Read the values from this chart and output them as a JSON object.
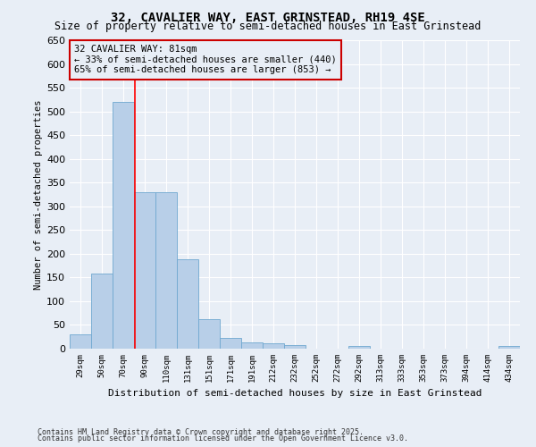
{
  "title": "32, CAVALIER WAY, EAST GRINSTEAD, RH19 4SE",
  "subtitle": "Size of property relative to semi-detached houses in East Grinstead",
  "xlabel": "Distribution of semi-detached houses by size in East Grinstead",
  "ylabel": "Number of semi-detached properties",
  "footer_line1": "Contains HM Land Registry data © Crown copyright and database right 2025.",
  "footer_line2": "Contains public sector information licensed under the Open Government Licence v3.0.",
  "bins": [
    "29sqm",
    "50sqm",
    "70sqm",
    "90sqm",
    "110sqm",
    "131sqm",
    "151sqm",
    "171sqm",
    "191sqm",
    "212sqm",
    "232sqm",
    "252sqm",
    "272sqm",
    "292sqm",
    "313sqm",
    "333sqm",
    "353sqm",
    "373sqm",
    "394sqm",
    "414sqm",
    "434sqm"
  ],
  "values": [
    30,
    158,
    520,
    330,
    330,
    188,
    62,
    22,
    14,
    11,
    8,
    0,
    0,
    5,
    0,
    0,
    0,
    0,
    0,
    0,
    5
  ],
  "bar_color": "#b8cfe8",
  "bar_edge_color": "#6fa8d0",
  "bg_color": "#e8eef6",
  "grid_color": "#ffffff",
  "red_line_x": 2.55,
  "property_label": "32 CAVALIER WAY: 81sqm",
  "annotation_smaller": "← 33% of semi-detached houses are smaller (440)",
  "annotation_larger": "65% of semi-detached houses are larger (853) →",
  "annotation_box_color": "#cc0000",
  "ylim": [
    0,
    650
  ],
  "yticks": [
    0,
    50,
    100,
    150,
    200,
    250,
    300,
    350,
    400,
    450,
    500,
    550,
    600,
    650
  ],
  "title_fontsize": 10,
  "subtitle_fontsize": 8.5
}
